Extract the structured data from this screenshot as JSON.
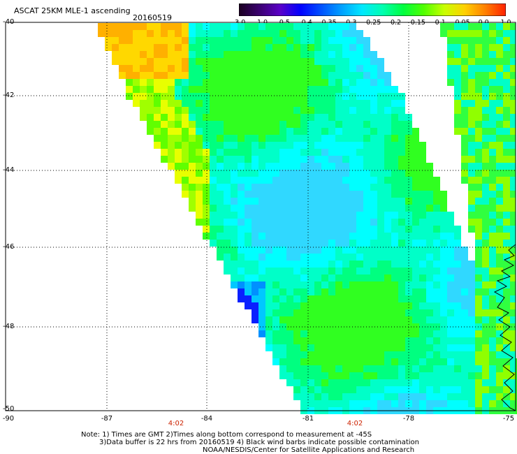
{
  "header": {
    "title": "ASCAT 25KM MLE-1 ascending",
    "date": "20160519"
  },
  "colorbar": {
    "tick_labels": [
      "-3.0",
      "-1.0",
      "-0.5",
      "-0.4",
      "-0.35",
      "-0.3",
      "-0.25",
      "-0.2",
      "-0.15",
      "-0.1",
      "-0.05",
      "0.0",
      "1.0"
    ],
    "colors": [
      "#1a0020",
      "#3a0070",
      "#5a00c8",
      "#0000ff",
      "#0050ff",
      "#00a0ff",
      "#00e8ff",
      "#00ffb0",
      "#00ff40",
      "#50ff00",
      "#c8ff00",
      "#ffd000",
      "#ff8000",
      "#ff2000"
    ]
  },
  "axes": {
    "lat_labels": [
      "-40",
      "-42",
      "-44",
      "-46",
      "-48",
      "-50"
    ],
    "lon_labels": [
      "-90",
      "-87",
      "-84",
      "-81",
      "-78",
      "-75"
    ],
    "time_labels": [
      "4:02",
      "4:02"
    ]
  },
  "notes": {
    "line1": "Note: 1) Times are GMT 2)Times along bottom correspond to measurement at -45S",
    "line2": "3)Data buffer is 22 hrs from 20160519 4) Black wind barbs indicate possible contamination",
    "line3": "NOAA/NESDIS/Center for Satellite Applications and Research"
  }
}
